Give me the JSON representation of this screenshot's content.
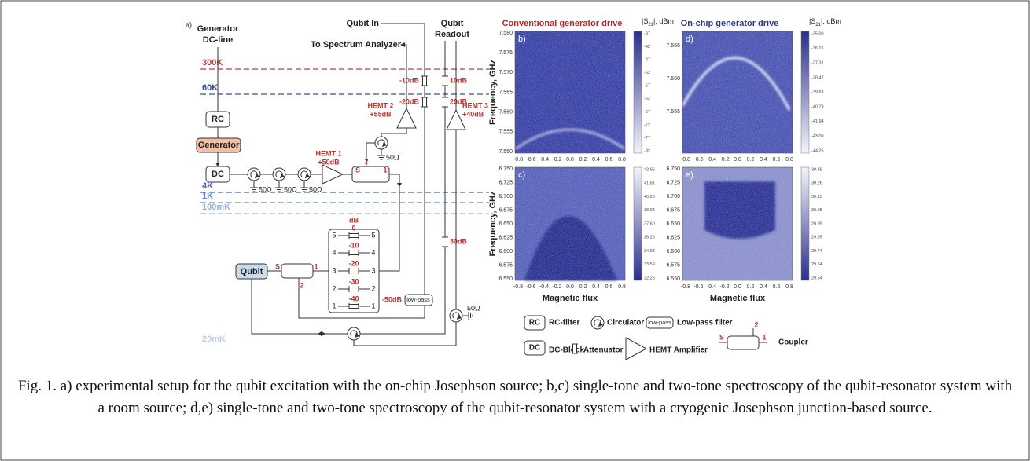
{
  "diagram": {
    "label": "a)",
    "generator_dc_line": [
      "Generator",
      "DC-line"
    ],
    "qubit_in": "Qubit In",
    "spectrum_analyzer": "To Spectrum Analyzer",
    "qubit_readout": [
      "Qubit",
      "Readout"
    ],
    "stages": [
      "300K",
      "60K",
      "4K",
      "1K",
      "100mK",
      "20mK"
    ],
    "rc": "RC",
    "generator": "Generator",
    "dc": "DC",
    "qubit": "Qubit",
    "attenuators": [
      "-10dB",
      "-20dB",
      "10dB",
      "20dB",
      "30dB",
      "-50dB"
    ],
    "hemt": [
      {
        "name": "HEMT 1",
        "gain": "+50dB"
      },
      {
        "name": "HEMT 2",
        "gain": "+55dB"
      },
      {
        "name": "HEMT 3",
        "gain": "+40dB"
      }
    ],
    "loads": [
      "50Ω",
      "50Ω",
      "50Ω",
      "50Ω",
      "50Ω"
    ],
    "low_pass": "low-pass",
    "couplers": [
      [
        "S",
        "2",
        "1"
      ],
      [
        "S",
        "2",
        "1"
      ]
    ],
    "switch": {
      "unit": "dB",
      "levels": [
        "0",
        "-10",
        "-20",
        "-30",
        "-40"
      ],
      "ports_left": [
        "5",
        "4",
        "3",
        "2",
        "1"
      ],
      "ports_right": [
        "5",
        "4",
        "3",
        "2",
        "1"
      ]
    }
  },
  "panels": [
    {
      "label": "b)",
      "title": "Conventional generator drive",
      "unit": [
        "|S",
        "21",
        "|, dBm"
      ],
      "ylabel": "Frequency, GHz",
      "yticks": [
        "7.580",
        "7.575",
        "7.570",
        "7.565",
        "7.560",
        "7.555",
        "7.550"
      ],
      "xticks": [
        "-0.8",
        "-0.6",
        "-0.4",
        "-0.2",
        "0.0",
        "0.2",
        "0.4",
        "0.6",
        "0.8"
      ],
      "colorbar": [
        "-37",
        "-42",
        "-47",
        "-52",
        "-57",
        "-62",
        "-67",
        "-72",
        "-77",
        "-82"
      ]
    },
    {
      "label": "c)",
      "ylabel": "Frequency, GHz",
      "xlabel": "Magnetic flux",
      "yticks": [
        "6.750",
        "6.725",
        "6.700",
        "6.675",
        "6.650",
        "6.625",
        "6.600",
        "6.575",
        "6.550"
      ],
      "xticks": [
        "-0.8",
        "-0.6",
        "-0.4",
        "-0.2",
        "0.0",
        "0.2",
        "0.4",
        "0.6",
        "0.8"
      ],
      "colorbar": [
        "42.95",
        "41.61",
        "40.28",
        "38.94",
        "37.60",
        "36.26",
        "34.93",
        "33.59",
        "32.25"
      ]
    },
    {
      "label": "d)",
      "title": "On-chip generator drive",
      "unit": [
        "|S",
        "21",
        "|, dBm"
      ],
      "yticks": [
        "7.565",
        "7.560",
        "7.555"
      ],
      "xticks": [
        "-0.8",
        "-0.6",
        "-0.4",
        "-0.2",
        "0.0",
        "0.2",
        "0.4",
        "0.6",
        "0.8"
      ],
      "colorbar": [
        "-35.00",
        "-36.15",
        "-37.31",
        "-38.47",
        "-39.63",
        "-40.79",
        "-41.94",
        "-43.09",
        "-44.25"
      ]
    },
    {
      "label": "e)",
      "xlabel": "Magnetic flux",
      "yticks": [
        "6.750",
        "6.725",
        "6.700",
        "6.675",
        "6.650",
        "6.625",
        "6.600",
        "6.575",
        "6.550"
      ],
      "xticks": [
        "-0.8",
        "-0.6",
        "-0.4",
        "-0.2",
        "0.0",
        "0.2",
        "0.4",
        "0.6",
        "0.8"
      ],
      "colorbar": [
        "30.35",
        "30.26",
        "30.15",
        "30.05",
        "29.95",
        "29.85",
        "29.74",
        "29.64",
        "29.54"
      ]
    }
  ],
  "legend": {
    "rc": "RC",
    "rc_text": "RC-filter",
    "circulator": "Circulator",
    "low_pass": "low-pass",
    "low_pass_text": "Low-pass filter",
    "dc": "DC",
    "dc_text": "DC-Block",
    "attenuator": "Attenuator",
    "hemt": "HEMT Amplifier",
    "coupler_ports": [
      "S",
      "2",
      "1"
    ],
    "coupler": "Coupler"
  },
  "caption": "Fig. 1. a) experimental setup for the qubit excitation with the on-chip Josephson source; b,c) single-tone and two-tone spectroscopy of the qubit-resonator system with a room source; d,e) single-tone and two-tone spectroscopy of the qubit-resonator system with a cryogenic Josephson junction-based source."
}
